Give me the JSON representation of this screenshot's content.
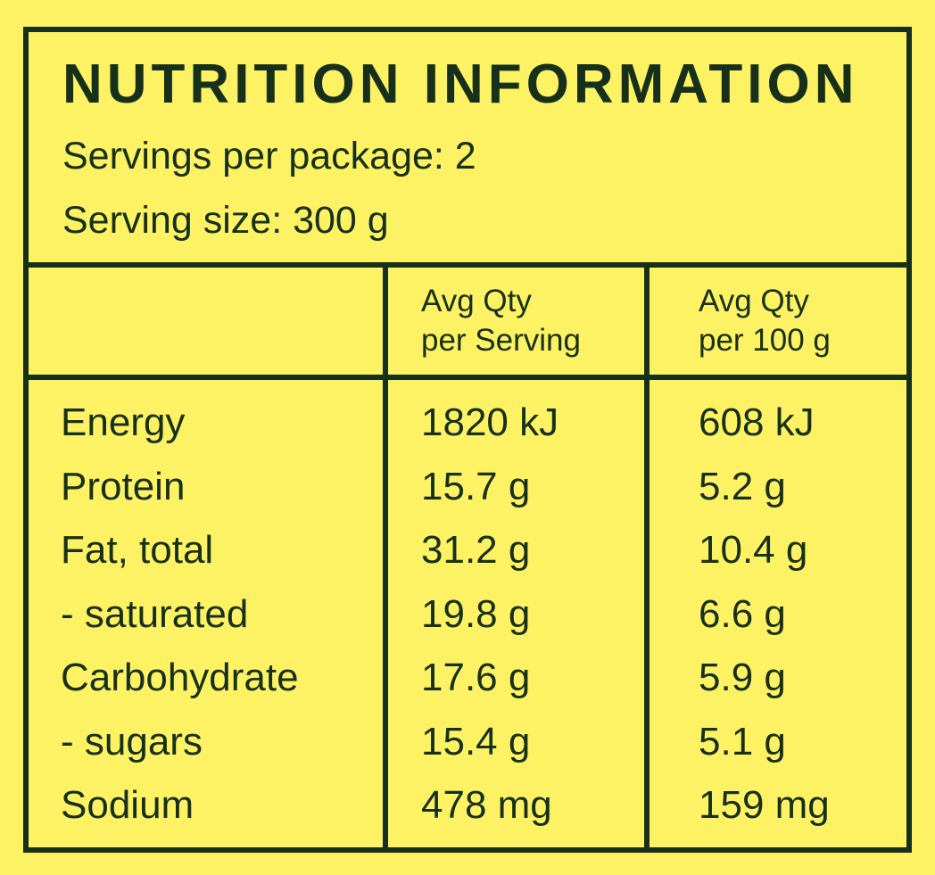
{
  "panel": {
    "title": "NUTRITION INFORMATION",
    "servings_per_package": "Servings per package: 2",
    "serving_size": "Serving size: 300 g"
  },
  "table": {
    "columns": [
      {
        "line1": "",
        "line2": ""
      },
      {
        "line1": "Avg Qty",
        "line2": "per Serving"
      },
      {
        "line1": "Avg Qty",
        "line2": "per 100 g"
      }
    ],
    "rows": [
      {
        "nutrient": "Energy",
        "per_serving": "1820 kJ",
        "per_100g": "608 kJ"
      },
      {
        "nutrient": "Protein",
        "per_serving": "15.7 g",
        "per_100g": "5.2 g"
      },
      {
        "nutrient": "Fat, total",
        "per_serving": "31.2 g",
        "per_100g": "10.4 g"
      },
      {
        "nutrient": "- saturated",
        "per_serving": "19.8 g",
        "per_100g": "6.6 g"
      },
      {
        "nutrient": "Carbohydrate",
        "per_serving": "17.6 g",
        "per_100g": "5.9 g"
      },
      {
        "nutrient": "- sugars",
        "per_serving": "15.4 g",
        "per_100g": "5.1 g"
      },
      {
        "nutrient": "Sodium",
        "per_serving": "478 mg",
        "per_100g": "159 mg"
      }
    ]
  },
  "colors": {
    "background": "#fdf263",
    "ink": "#17301b"
  }
}
